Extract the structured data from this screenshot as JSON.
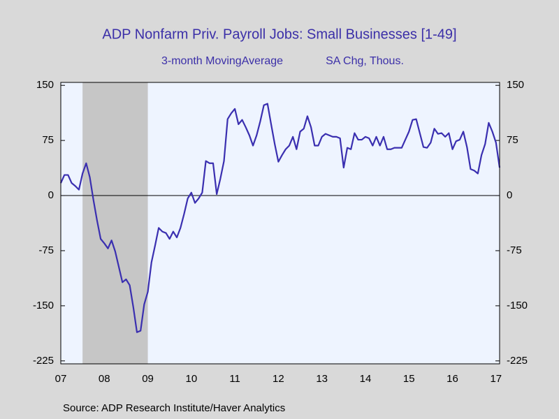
{
  "chart_data": {
    "type": "line",
    "title": "ADP Nonfarm Priv. Payroll Jobs: Small Businesses [1-49]",
    "subtitle_left": "3-month MovingAverage",
    "subtitle_right": "SA Chg, Thous.",
    "source": "Source:  ADP Research Institute/Haver Analytics",
    "categories": [
      "07",
      null,
      null,
      null,
      null,
      null,
      null,
      null,
      null,
      null,
      null,
      null,
      "08",
      null,
      null,
      null,
      null,
      null,
      null,
      null,
      null,
      null,
      null,
      null,
      "09",
      null,
      null,
      null,
      null,
      null,
      null,
      null,
      null,
      null,
      null,
      null,
      "10",
      null,
      null,
      null,
      null,
      null,
      null,
      null,
      null,
      null,
      null,
      null,
      "11",
      null,
      null,
      null,
      null,
      null,
      null,
      null,
      null,
      null,
      null,
      null,
      "12",
      null,
      null,
      null,
      null,
      null,
      null,
      null,
      null,
      null,
      null,
      null,
      "13",
      null,
      null,
      null,
      null,
      null,
      null,
      null,
      null,
      null,
      null,
      null,
      "14",
      null,
      null,
      null,
      null,
      null,
      null,
      null,
      null,
      null,
      null,
      null,
      "15",
      null,
      null,
      null,
      null,
      null,
      null,
      null,
      null,
      null,
      null,
      null,
      "16",
      null,
      null,
      null,
      null,
      null,
      null,
      null,
      null,
      null,
      null,
      null,
      "17",
      null
    ],
    "series": [
      {
        "name": "3-month MovingAverage",
        "color": "#3a2fb0",
        "values": [
          17,
          28,
          28,
          17,
          13,
          8,
          30,
          44,
          25,
          -6,
          -34,
          -59,
          -65,
          -72,
          -61,
          -76,
          -97,
          -118,
          -114,
          -122,
          -152,
          -186,
          -184,
          -148,
          -131,
          -91,
          -68,
          -44,
          -49,
          -51,
          -59,
          -49,
          -57,
          -44,
          -25,
          -4,
          4,
          -10,
          -4,
          4,
          47,
          44,
          44,
          2,
          23,
          47,
          104,
          112,
          118,
          97,
          103,
          93,
          82,
          68,
          82,
          101,
          123,
          125,
          97,
          70,
          46,
          55,
          63,
          68,
          80,
          63,
          87,
          91,
          108,
          93,
          68,
          68,
          80,
          84,
          82,
          80,
          80,
          78,
          38,
          65,
          63,
          85,
          76,
          76,
          80,
          78,
          68,
          80,
          68,
          80,
          63,
          63,
          65,
          65,
          65,
          76,
          87,
          103,
          104,
          85,
          66,
          65,
          72,
          91,
          84,
          85,
          80,
          85,
          63,
          74,
          76,
          87,
          66,
          36,
          34,
          30,
          55,
          70,
          99,
          87,
          72,
          38
        ]
      }
    ],
    "shaded_ranges": [
      [
        6,
        24
      ]
    ],
    "ylim": [
      -229,
      154
    ],
    "yticks": [
      -225,
      -150,
      -75,
      0,
      75,
      150
    ],
    "y2lim": [
      -229,
      154
    ],
    "y2ticks": [
      -225,
      -150,
      -75,
      0,
      75,
      150
    ],
    "zero_line": true,
    "plot_background": "#eef4ff",
    "shade_color": "#c6c6c6"
  }
}
